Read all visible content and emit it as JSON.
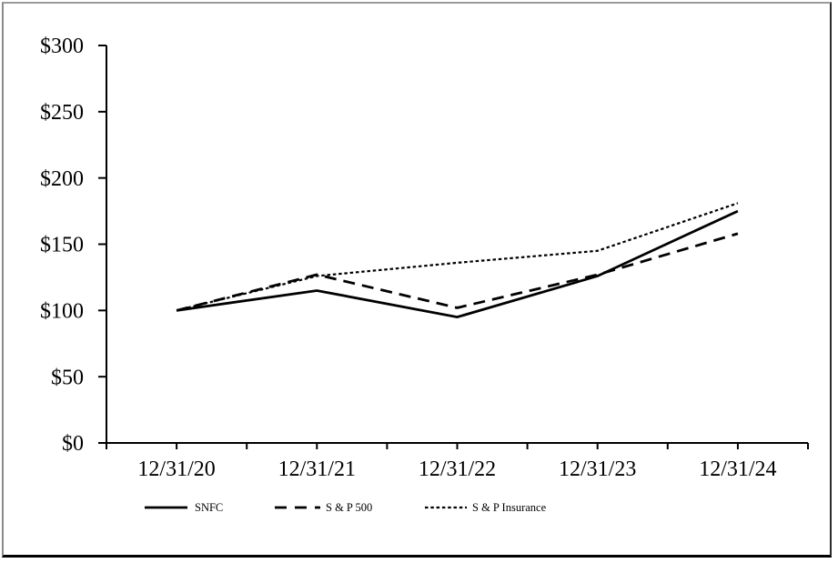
{
  "chart_data": {
    "type": "line",
    "title": "",
    "categories": [
      "12/31/20",
      "12/31/21",
      "12/31/22",
      "12/31/23",
      "12/31/24"
    ],
    "series": [
      {
        "id": "snfc",
        "name": "SNFC",
        "style": "solid",
        "values": [
          100,
          115,
          95,
          126,
          175
        ]
      },
      {
        "id": "sp500",
        "name": "S & P 500",
        "style": "long-dash",
        "values": [
          100,
          127,
          102,
          127,
          158
        ]
      },
      {
        "id": "sp-insurance",
        "name": "S & P Insurance",
        "style": "dot",
        "values": [
          100,
          126,
          136,
          145,
          181
        ]
      }
    ],
    "ylim": [
      0,
      300
    ],
    "ytick_step": 50,
    "ytick_labels": [
      "$0",
      "$50",
      "$100",
      "$150",
      "$200",
      "$250",
      "$300"
    ],
    "xlabel": "",
    "ylabel": "",
    "grid": false,
    "legend_position": "bottom",
    "colors": {
      "line": "#000000",
      "text": "#000000",
      "background": "#ffffff"
    }
  }
}
